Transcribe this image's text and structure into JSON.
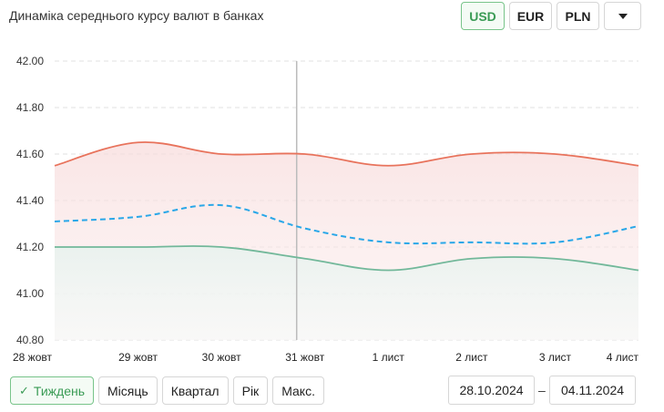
{
  "header": {
    "title": "Динаміка середнього курсу валют в банках"
  },
  "currencies": {
    "usd": "USD",
    "eur": "EUR",
    "pln": "PLN",
    "more_icon": "chevron-down-icon"
  },
  "periods": {
    "week": "Тиждень",
    "month": "Місяць",
    "quarter": "Квартал",
    "year": "Рік",
    "max": "Макс.",
    "active_check": "✓"
  },
  "date_range": {
    "from": "28.10.2024",
    "separator": "–",
    "to": "04.11.2024"
  },
  "colors": {
    "sell_line": "#e8735c",
    "buy_line": "#72b89a",
    "average_line": "#29a7e8",
    "crosshair": "#bbbbbb",
    "active_green": "#3a9b55"
  },
  "chart_data": {
    "type": "line",
    "categories": [
      "28 жовт",
      "29 жовт",
      "30 жовт",
      "31 жовт",
      "1 лист",
      "2 лист",
      "3 лист",
      "4 лист"
    ],
    "yticks": [
      "42.00",
      "41.80",
      "41.60",
      "41.40",
      "41.20",
      "41.00",
      "40.80"
    ],
    "ylim": [
      40.8,
      42.0
    ],
    "grid": true,
    "highlighted_category": "31 жовт",
    "series": [
      {
        "key": "sell",
        "style": "solid",
        "fill": "area",
        "values": [
          41.55,
          41.65,
          41.6,
          41.6,
          41.55,
          41.6,
          41.6,
          41.55
        ]
      },
      {
        "key": "average",
        "style": "dashed",
        "fill": "none",
        "values": [
          41.31,
          41.33,
          41.38,
          41.28,
          41.22,
          41.22,
          41.22,
          41.29
        ]
      },
      {
        "key": "buy",
        "style": "solid",
        "fill": "area",
        "values": [
          41.2,
          41.2,
          41.2,
          41.15,
          41.1,
          41.15,
          41.15,
          41.1
        ]
      }
    ]
  }
}
